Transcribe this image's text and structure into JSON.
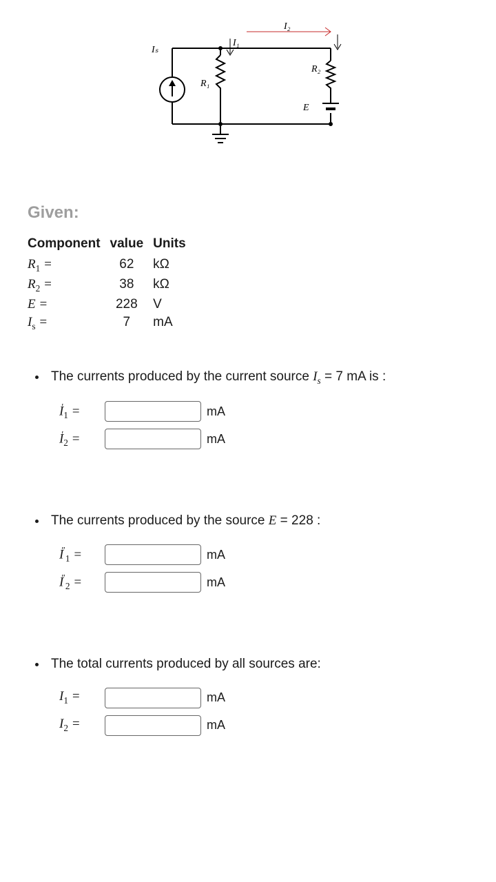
{
  "circuit": {
    "labels": {
      "Is": "Iₛ",
      "I1_arrow": "I₁",
      "I2_arrow": "I₂",
      "R1": "R₁",
      "R2": "R₂",
      "E": "E"
    },
    "colors": {
      "wire": "#000000",
      "i2_ammeter": "#c62828"
    }
  },
  "given_heading": "Given:",
  "table": {
    "headers": [
      "Component",
      "value",
      "Units"
    ],
    "rows": [
      {
        "comp_html": "R<sub>1</sub> =",
        "value": "62",
        "unit": "kΩ"
      },
      {
        "comp_html": "R<sub>2</sub> =",
        "value": "38",
        "unit": "kΩ"
      },
      {
        "comp_html": "E =",
        "value": "228",
        "unit": "V"
      },
      {
        "comp_html": "I<sub>s</sub> =",
        "value": "7",
        "unit": "mA"
      }
    ]
  },
  "sections": [
    {
      "text_parts": [
        "The currents produced by  the current source ",
        "I",
        "s",
        " = 7 mA is :"
      ],
      "answers": [
        {
          "sym": "I",
          "sub": "1",
          "sup": "′",
          "unit": "mA"
        },
        {
          "sym": "I",
          "sub": "2",
          "sup": "′",
          "unit": "mA"
        }
      ]
    },
    {
      "text_parts": [
        "The currents produced by  the source ",
        "E",
        "",
        " = 228  :"
      ],
      "answers": [
        {
          "sym": "I",
          "sub": "1",
          "sup": "″",
          "unit": "mA"
        },
        {
          "sym": "I",
          "sub": "2",
          "sup": "″",
          "unit": "mA"
        }
      ]
    },
    {
      "text_parts": [
        "The total currents produced by all sources are:",
        "",
        "",
        ""
      ],
      "answers": [
        {
          "sym": "I",
          "sub": "1",
          "sup": "",
          "unit": "mA"
        },
        {
          "sym": "I",
          "sub": "2",
          "sup": "",
          "unit": "mA"
        }
      ]
    }
  ]
}
